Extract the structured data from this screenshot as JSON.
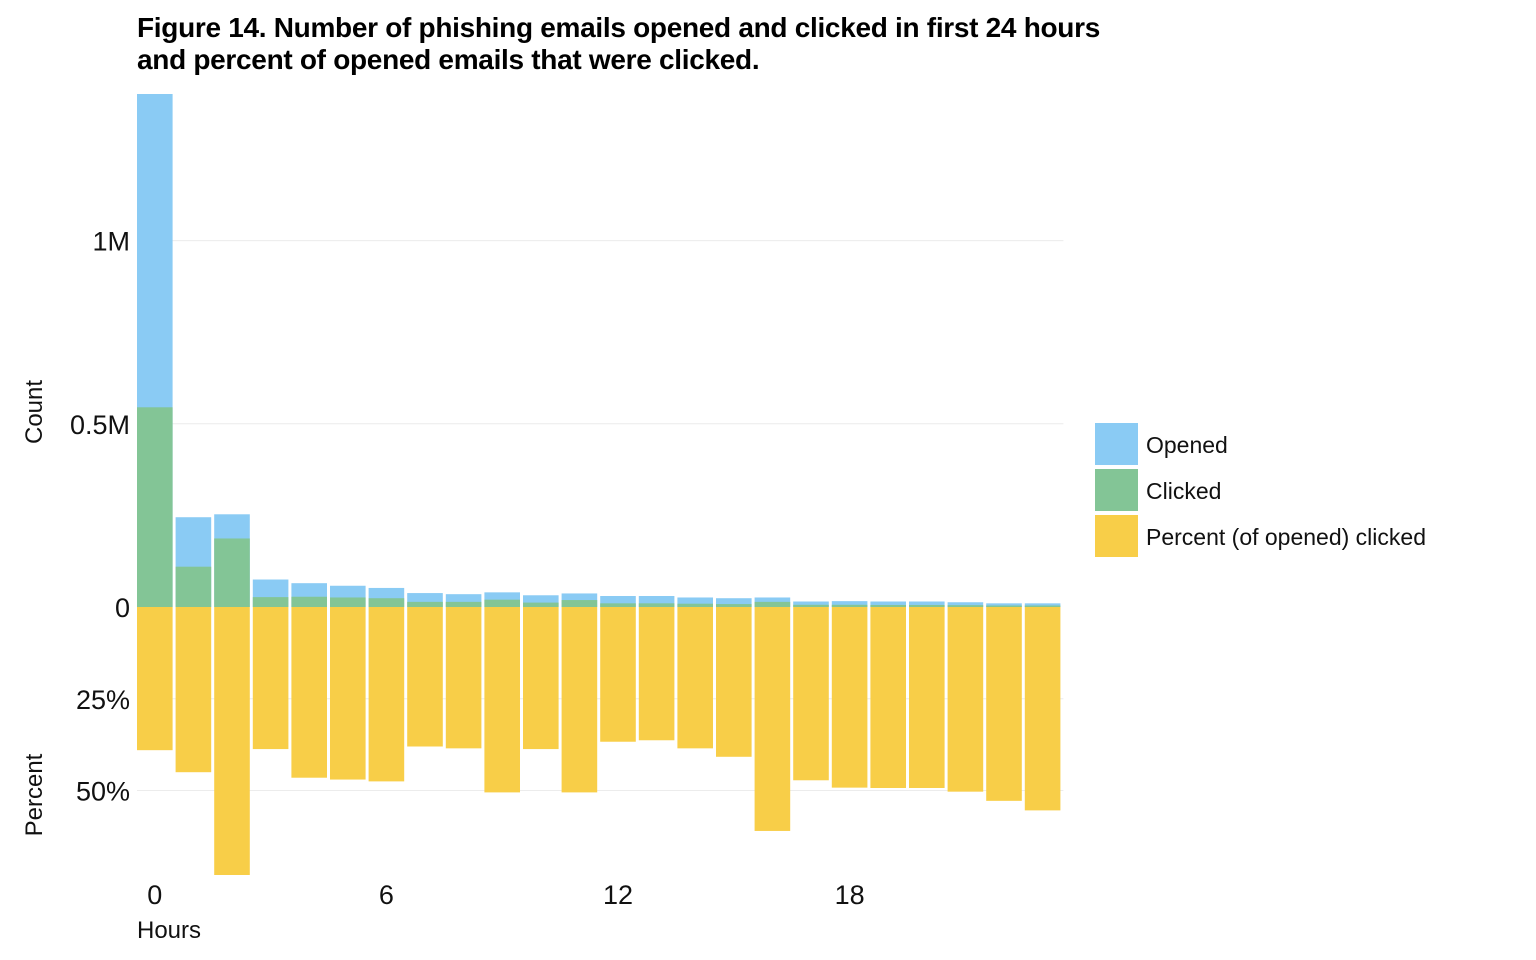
{
  "title_line1": "Figure 14. Number of phishing emails opened and clicked in first 24 hours",
  "title_line2": "and percent of opened emails that were clicked.",
  "chart_data": {
    "type": "bar",
    "x": [
      0,
      1,
      2,
      3,
      4,
      5,
      6,
      7,
      8,
      9,
      10,
      11,
      12,
      13,
      14,
      15,
      16,
      17,
      18,
      19,
      20,
      21,
      22,
      23
    ],
    "xlabel": "Hours",
    "x_ticks": [
      0,
      6,
      12,
      18
    ],
    "x_tick_labels": [
      "0",
      "6",
      "12",
      "18"
    ],
    "top_panel": {
      "ylabel": "Count",
      "ylim": [
        0,
        1400000
      ],
      "y_ticks": [
        0,
        500000,
        1000000
      ],
      "y_tick_labels": [
        "0",
        "0.5M",
        "1M"
      ],
      "series": [
        {
          "name": "Opened",
          "color": "#8acbf4",
          "values": [
            1400000,
            245000,
            253000,
            75000,
            65000,
            58000,
            52000,
            38000,
            35000,
            40000,
            32000,
            37000,
            30000,
            30000,
            26000,
            24000,
            26000,
            15000,
            16000,
            15000,
            15000,
            13000,
            10000,
            10000
          ]
        },
        {
          "name": "Clicked",
          "color": "#83c596",
          "values": [
            545000,
            110000,
            187000,
            27000,
            28000,
            26000,
            24000,
            14000,
            14000,
            20000,
            12000,
            19000,
            10000,
            10000,
            9000,
            8000,
            14000,
            6000,
            6000,
            5500,
            5500,
            5000,
            4000,
            4000
          ]
        }
      ]
    },
    "bottom_panel": {
      "ylabel": "Percent",
      "ylim": [
        0,
        73
      ],
      "y_ticks": [
        25,
        50
      ],
      "y_tick_labels": [
        "25%",
        "50%"
      ],
      "series": [
        {
          "name": "Percent (of opened) clicked",
          "color": "#f8ce48",
          "values": [
            39,
            45,
            73,
            38.7,
            46.5,
            47,
            47.5,
            38,
            38.5,
            50.5,
            38.7,
            50.5,
            36.7,
            36.3,
            38.5,
            40.8,
            61,
            47.2,
            49.2,
            49.3,
            49.3,
            50.3,
            52.8,
            55.4
          ]
        }
      ]
    },
    "grid": true,
    "legend_position": "right"
  }
}
